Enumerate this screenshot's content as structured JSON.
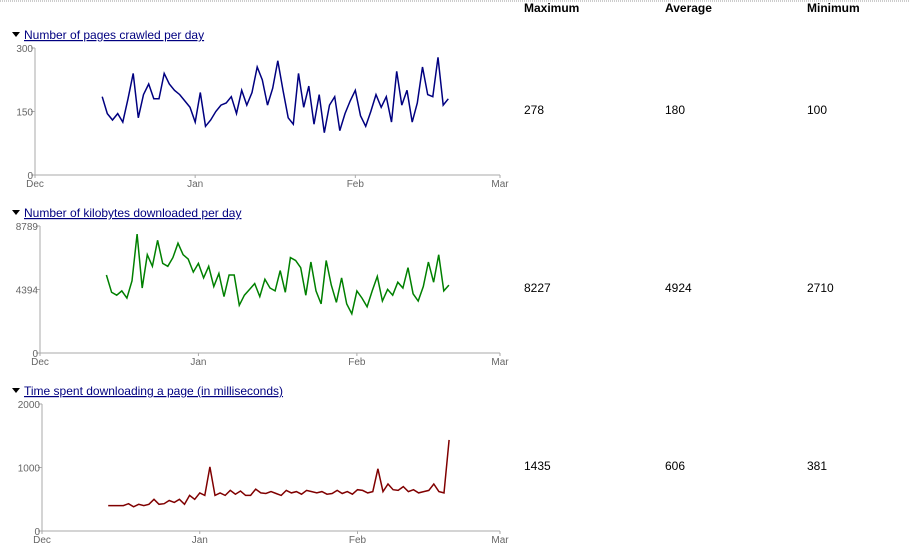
{
  "stats": {
    "columns": [
      "Maximum",
      "Average",
      "Minimum"
    ],
    "rows": [
      [
        278,
        180,
        100
      ],
      [
        8227,
        4924,
        2710
      ],
      [
        1435,
        606,
        381
      ]
    ]
  },
  "chart_data": [
    {
      "type": "line",
      "title": "Number of pages crawled per day",
      "color": "#000080",
      "xlim": [
        0,
        90
      ],
      "xticks": [
        {
          "value": 0,
          "label": "Dec"
        },
        {
          "value": 31,
          "label": "Jan"
        },
        {
          "value": 62,
          "label": "Feb"
        },
        {
          "value": 90,
          "label": "Mar"
        }
      ],
      "ylim": [
        0,
        300
      ],
      "yticks": [
        0,
        150,
        300
      ],
      "x": [
        13,
        14,
        15,
        16,
        17,
        18,
        19,
        20,
        21,
        22,
        23,
        24,
        25,
        26,
        27,
        28,
        29,
        30,
        31,
        32,
        33,
        34,
        35,
        36,
        37,
        38,
        39,
        40,
        41,
        42,
        43,
        44,
        45,
        46,
        47,
        48,
        49,
        50,
        51,
        52,
        53,
        54,
        55,
        56,
        57,
        58,
        59,
        60,
        61,
        62,
        63,
        64,
        65,
        66,
        67,
        68,
        69,
        70,
        71,
        72,
        73,
        74,
        75,
        76,
        77,
        78,
        79,
        80
      ],
      "values": [
        185,
        145,
        130,
        145,
        125,
        180,
        240,
        135,
        190,
        215,
        180,
        180,
        240,
        215,
        200,
        190,
        175,
        160,
        125,
        195,
        115,
        130,
        150,
        165,
        170,
        185,
        145,
        200,
        165,
        195,
        255,
        225,
        165,
        205,
        270,
        200,
        135,
        120,
        240,
        160,
        210,
        120,
        190,
        100,
        165,
        185,
        105,
        145,
        175,
        200,
        140,
        115,
        150,
        190,
        160,
        185,
        125,
        245,
        165,
        200,
        125,
        170,
        255,
        190,
        185,
        278,
        165,
        180
      ]
    },
    {
      "type": "line",
      "title": "Number of kilobytes downloaded per day",
      "color": "#008000",
      "xlim": [
        0,
        90
      ],
      "xticks": [
        {
          "value": 0,
          "label": "Dec"
        },
        {
          "value": 31,
          "label": "Jan"
        },
        {
          "value": 62,
          "label": "Feb"
        },
        {
          "value": 90,
          "label": "Mar"
        }
      ],
      "ylim": [
        0,
        8789
      ],
      "yticks": [
        0,
        4394,
        8789
      ],
      "x": [
        13,
        14,
        15,
        16,
        17,
        18,
        19,
        20,
        21,
        22,
        23,
        24,
        25,
        26,
        27,
        28,
        29,
        30,
        31,
        32,
        33,
        34,
        35,
        36,
        37,
        38,
        39,
        40,
        41,
        42,
        43,
        44,
        45,
        46,
        47,
        48,
        49,
        50,
        51,
        52,
        53,
        54,
        55,
        56,
        57,
        58,
        59,
        60,
        61,
        62,
        63,
        64,
        65,
        66,
        67,
        68,
        69,
        70,
        71,
        72,
        73,
        74,
        75,
        76,
        77,
        78,
        79,
        80
      ],
      "values": [
        5400,
        4200,
        4000,
        4300,
        3800,
        5000,
        8227,
        4500,
        6800,
        6000,
        7800,
        6200,
        6000,
        6600,
        7600,
        6800,
        6500,
        5600,
        6200,
        5200,
        6000,
        4600,
        5500,
        3900,
        5400,
        5400,
        3300,
        4000,
        4400,
        4800,
        3900,
        5100,
        4500,
        4300,
        5700,
        4200,
        6600,
        6400,
        5900,
        4000,
        6300,
        4300,
        3400,
        6400,
        4700,
        3500,
        5200,
        3400,
        2710,
        4300,
        3800,
        3200,
        4300,
        5300,
        3600,
        4400,
        4000,
        4900,
        4500,
        5900,
        4100,
        3600,
        4600,
        6300,
        4900,
        6800,
        4300,
        4700
      ]
    },
    {
      "type": "line",
      "title": "Time spent downloading a page (in milliseconds)",
      "color": "#800000",
      "xlim": [
        0,
        90
      ],
      "xticks": [
        {
          "value": 0,
          "label": "Dec"
        },
        {
          "value": 31,
          "label": "Jan"
        },
        {
          "value": 62,
          "label": "Feb"
        },
        {
          "value": 90,
          "label": "Mar"
        }
      ],
      "ylim": [
        0,
        2000
      ],
      "yticks": [
        0,
        1000,
        2000
      ],
      "x": [
        13,
        14,
        15,
        16,
        17,
        18,
        19,
        20,
        21,
        22,
        23,
        24,
        25,
        26,
        27,
        28,
        29,
        30,
        31,
        32,
        33,
        34,
        35,
        36,
        37,
        38,
        39,
        40,
        41,
        42,
        43,
        44,
        45,
        46,
        47,
        48,
        49,
        50,
        51,
        52,
        53,
        54,
        55,
        56,
        57,
        58,
        59,
        60,
        61,
        62,
        63,
        64,
        65,
        66,
        67,
        68,
        69,
        70,
        71,
        72,
        73,
        74,
        75,
        76,
        77,
        78,
        79,
        80
      ],
      "values": [
        400,
        400,
        400,
        400,
        430,
        381,
        420,
        400,
        420,
        500,
        420,
        430,
        480,
        450,
        500,
        420,
        560,
        500,
        600,
        560,
        1010,
        560,
        600,
        560,
        640,
        580,
        630,
        560,
        560,
        660,
        600,
        590,
        620,
        590,
        560,
        640,
        600,
        620,
        580,
        640,
        620,
        600,
        620,
        580,
        590,
        640,
        590,
        620,
        580,
        650,
        640,
        600,
        620,
        980,
        620,
        740,
        650,
        640,
        700,
        620,
        650,
        600,
        620,
        640,
        740,
        620,
        600,
        1435
      ]
    }
  ]
}
